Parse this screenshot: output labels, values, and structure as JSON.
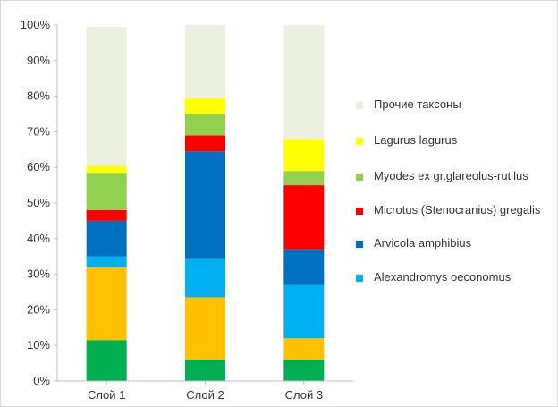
{
  "chart_data": {
    "type": "bar",
    "stacked": true,
    "percent": true,
    "categories": [
      "Слой 1",
      "Слой 2",
      "Слой 3"
    ],
    "ylim": [
      0,
      100
    ],
    "yticks": [
      "0%",
      "10%",
      "20%",
      "30%",
      "40%",
      "50%",
      "60%",
      "70%",
      "80%",
      "90%",
      "100%"
    ],
    "grid": false,
    "legend_position": "right",
    "series": [
      {
        "name": "",
        "color": "#00b050",
        "values": [
          11.5,
          6,
          6
        ]
      },
      {
        "name": "",
        "color": "#ffc000",
        "values": [
          20.5,
          17.5,
          6
        ]
      },
      {
        "name": "Alexandromys oeconomus",
        "color": "#00b0f0",
        "values": [
          3,
          11,
          15
        ]
      },
      {
        "name": "Arvicola amphibius",
        "color": "#0070c0",
        "values": [
          10,
          30,
          10
        ]
      },
      {
        "name": "Microtus (Stenocranius) gregalis",
        "color": "#ff0000",
        "values": [
          3,
          4.5,
          18
        ]
      },
      {
        "name": "Myodes ex gr.glareolus-rutilus",
        "color": "#92d050",
        "values": [
          10.5,
          6,
          4
        ]
      },
      {
        "name": "Lagurus lagurus",
        "color": "#ffff00",
        "values": [
          2,
          4.5,
          9
        ]
      },
      {
        "name": "Прочие таксоны",
        "color": "#ebf1de",
        "values": [
          39,
          20.5,
          32
        ]
      }
    ],
    "legend": [
      {
        "label": "Прочие таксоны",
        "color": "#ebf1de"
      },
      {
        "label": "Lagurus lagurus",
        "color": "#ffff00"
      },
      {
        "label": "Myodes ex gr.glareolus-rutilus",
        "color": "#92d050"
      },
      {
        "label": "Microtus (Stenocranius) gregalis",
        "color": "#ff0000"
      },
      {
        "label": "Arvicola amphibius",
        "color": "#0070c0"
      },
      {
        "label": "Alexandromys oeconomus",
        "color": "#00b0f0"
      }
    ]
  }
}
